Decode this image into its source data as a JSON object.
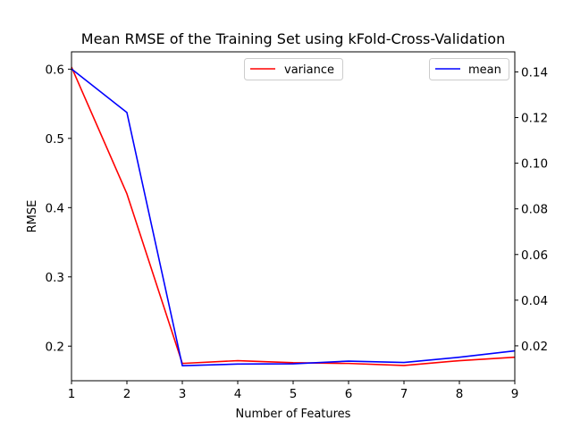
{
  "chart_data": {
    "type": "line",
    "title": "Mean RMSE of the Training Set using kFold-Cross-Validation",
    "xlabel": "Number of Features",
    "ylabel": "RMSE",
    "x": [
      1,
      2,
      3,
      4,
      5,
      6,
      7,
      8,
      9
    ],
    "xlim": [
      1,
      9
    ],
    "xticks": [
      1,
      2,
      3,
      4,
      5,
      6,
      7,
      8,
      9
    ],
    "ylim_left": [
      0.15,
      0.625
    ],
    "yticks_left": [
      0.2,
      0.3,
      0.4,
      0.5,
      0.6
    ],
    "ylim_right": [
      0.0047,
      0.1488
    ],
    "yticks_right": [
      0.02,
      0.04,
      0.06,
      0.08,
      0.1,
      0.12,
      0.14
    ],
    "series": [
      {
        "name": "variance",
        "axis": "left",
        "color": "#ff0000",
        "values": [
          0.603,
          0.42,
          0.175,
          0.179,
          0.176,
          0.175,
          0.172,
          0.179,
          0.184
        ],
        "legend_position": "upper-center"
      },
      {
        "name": "mean",
        "axis": "right",
        "color": "#0000ff",
        "values": [
          0.1413,
          0.1222,
          0.0113,
          0.012,
          0.0121,
          0.0133,
          0.0127,
          0.015,
          0.0178
        ],
        "legend_position": "upper-right"
      }
    ],
    "grid": false
  }
}
